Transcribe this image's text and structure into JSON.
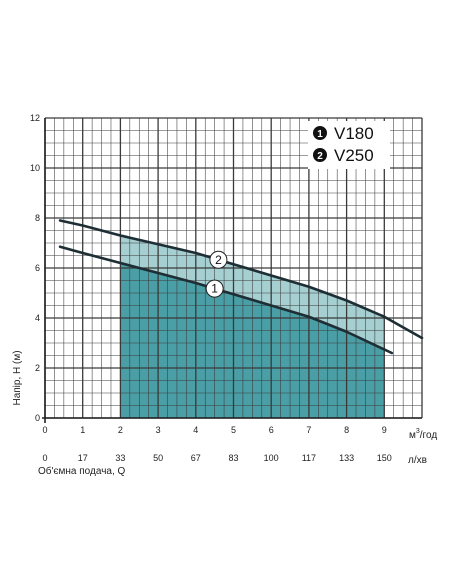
{
  "chart_data": {
    "type": "line",
    "xlabel": "Об'ємна подача, Q",
    "ylabel": "Напір, Н (м)",
    "x_unit_primary_base": "м",
    "x_unit_primary_sup": "3",
    "x_unit_primary_rest": "/год",
    "x_unit_secondary": "л/хв",
    "xlim": [
      0,
      10
    ],
    "ylim": [
      0,
      12
    ],
    "x_ticks": [
      "0",
      "1",
      "2",
      "3",
      "4",
      "5",
      "6",
      "7",
      "8",
      "9"
    ],
    "x_ticks_secondary": [
      "0",
      "17",
      "33",
      "50",
      "67",
      "83",
      "100",
      "117",
      "133",
      "150"
    ],
    "y_ticks": [
      "0",
      "2",
      "4",
      "6",
      "8",
      "10",
      "12"
    ],
    "grid": true,
    "legend_position": "top-right",
    "legend": [
      {
        "marker": "1",
        "label": "V180"
      },
      {
        "marker": "2",
        "label": "V250"
      }
    ],
    "series": [
      {
        "name": "V180",
        "marker": "1",
        "x": [
          0.4,
          1,
          2,
          3,
          4,
          5,
          6,
          7,
          8,
          9.2
        ],
        "y": [
          6.85,
          6.6,
          6.2,
          5.8,
          5.4,
          4.95,
          4.5,
          4.05,
          3.45,
          2.6
        ]
      },
      {
        "name": "V250",
        "marker": "2",
        "x": [
          0.4,
          1,
          2,
          3,
          4,
          5,
          6,
          7,
          8,
          9,
          10
        ],
        "y": [
          7.9,
          7.7,
          7.3,
          6.95,
          6.6,
          6.15,
          5.7,
          5.25,
          4.7,
          4.05,
          3.2
        ]
      }
    ],
    "working_range": {
      "x_start": 2,
      "x_end": 9
    },
    "colors": {
      "area_dark": "#4a9ea5",
      "area_light": "#a6cfd2",
      "curve": "#1e2e35",
      "grid": "#3a3a3a"
    }
  }
}
